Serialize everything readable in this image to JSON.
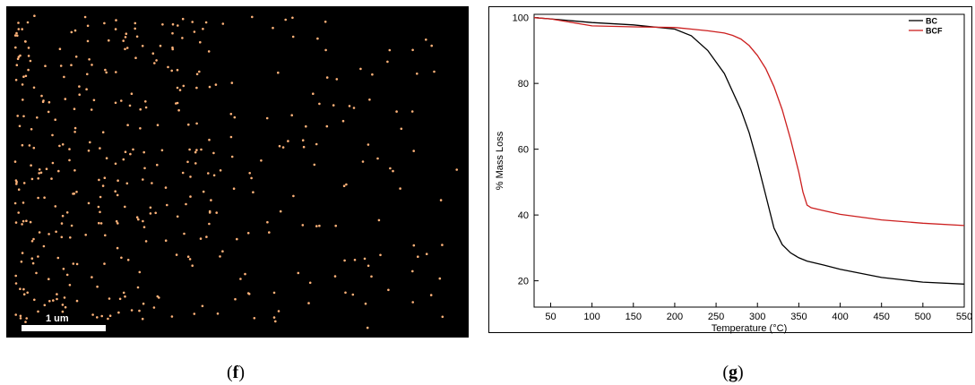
{
  "map_panel": {
    "scale_bar_label": "1 um",
    "dot_color": "#ffb37a",
    "background": "#000000"
  },
  "labels": {
    "f_open": "(",
    "f": "f",
    "f_close": ")",
    "g_open": "(",
    "g": "g",
    "g_close": ")"
  },
  "chart_data": {
    "type": "line",
    "xlabel": "Temperature (°C)",
    "ylabel": "% Mass Loss",
    "xlim": [
      30,
      550
    ],
    "ylim": [
      12,
      101
    ],
    "xticks": [
      50,
      100,
      150,
      200,
      250,
      300,
      350,
      400,
      450,
      500,
      550
    ],
    "yticks": [
      20,
      40,
      60,
      80,
      100
    ],
    "legend_position": "top-right",
    "series": [
      {
        "name": "BC",
        "color": "#000000",
        "x": [
          30,
          50,
          100,
          150,
          200,
          220,
          240,
          260,
          280,
          290,
          300,
          310,
          320,
          330,
          340,
          350,
          360,
          380,
          400,
          450,
          500,
          550
        ],
        "y": [
          100,
          99.6,
          98.5,
          97.8,
          96.5,
          94.5,
          90,
          83,
          72,
          65,
          56,
          46,
          36,
          31,
          28.5,
          27,
          26,
          24.8,
          23.5,
          21,
          19.6,
          19
        ]
      },
      {
        "name": "BCF",
        "color": "#cc1f1f",
        "x": [
          30,
          50,
          100,
          150,
          200,
          220,
          240,
          260,
          270,
          280,
          290,
          300,
          310,
          320,
          330,
          340,
          350,
          355,
          360,
          365,
          380,
          400,
          450,
          500,
          550
        ],
        "y": [
          100,
          99.6,
          97.5,
          97.2,
          97,
          96.5,
          96,
          95.3,
          94.6,
          93.5,
          91.5,
          88.5,
          84.5,
          79,
          72,
          63,
          53,
          47,
          43,
          42.2,
          41.3,
          40.2,
          38.5,
          37.5,
          36.8
        ]
      }
    ]
  }
}
